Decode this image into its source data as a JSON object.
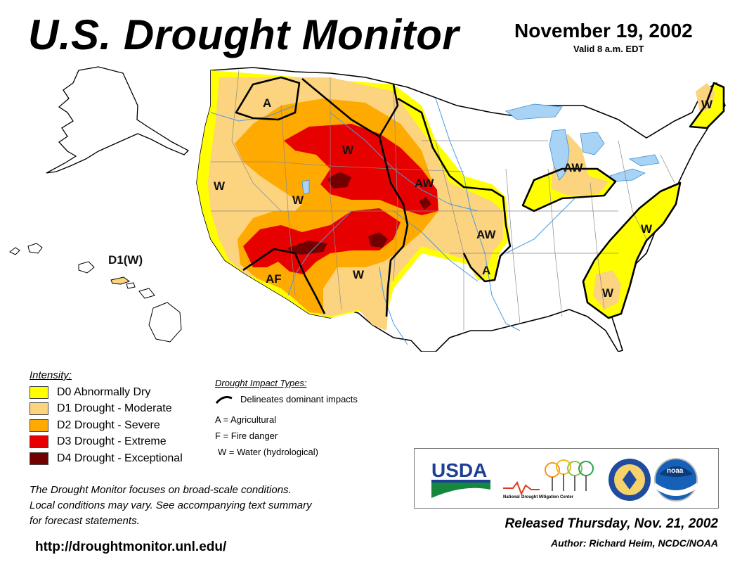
{
  "header": {
    "title": "U.S. Drought Monitor",
    "date": "November 19, 2002",
    "valid": "Valid 8 a.m. EDT"
  },
  "map": {
    "labels": {
      "pacific_nw_a": "A",
      "west_coast_w": "W",
      "great_basin_w": "W",
      "wyoming_w": "W",
      "nebraska_aw": "AW",
      "kansas_aw": "AW",
      "arkansas_a": "A",
      "southwest_af": "AF",
      "new_mexico_w": "W",
      "michigan_aw": "AW",
      "maine_w": "W",
      "mid_atlantic_w": "W",
      "carolinas_w": "W",
      "hawaii": "D1(W)"
    }
  },
  "legend": {
    "title": "Intensity:",
    "items": [
      {
        "label": "D0 Abnormally Dry",
        "color": "#ffff00"
      },
      {
        "label": "D1 Drought - Moderate",
        "color": "#fcd37f"
      },
      {
        "label": "D2 Drought - Severe",
        "color": "#ffaa00"
      },
      {
        "label": "D3 Drought - Extreme",
        "color": "#e60000"
      },
      {
        "label": "D4 Drought - Exceptional",
        "color": "#730000"
      }
    ]
  },
  "impacts": {
    "title": "Drought Impact Types:",
    "delineates": "Delineates dominant impacts",
    "codes": [
      "A = Agricultural",
      "F = Fire danger",
      "W = Water (hydrological)"
    ]
  },
  "note": {
    "line1": "The Drought Monitor focuses on broad-scale conditions.",
    "line2": "Local conditions may vary. See accompanying text summary",
    "line3": "for forecast statements."
  },
  "url": "http://droughtmonitor.unl.edu/",
  "logos": {
    "usda": "USDA",
    "ndmc_small": "National",
    "ndmc_rest": "Drought Mitigation Center",
    "noaa": "noaa"
  },
  "footer": {
    "released": "Released Thursday, Nov. 21, 2002",
    "author": "Author: Richard Heim, NCDC/NOAA"
  },
  "colors": {
    "d0": "#ffff00",
    "d1": "#fcd37f",
    "d2": "#ffaa00",
    "d3": "#e60000",
    "d4": "#730000",
    "water": "#a9d3f5",
    "rivers": "#4a9be0",
    "boundary": "#000000"
  }
}
